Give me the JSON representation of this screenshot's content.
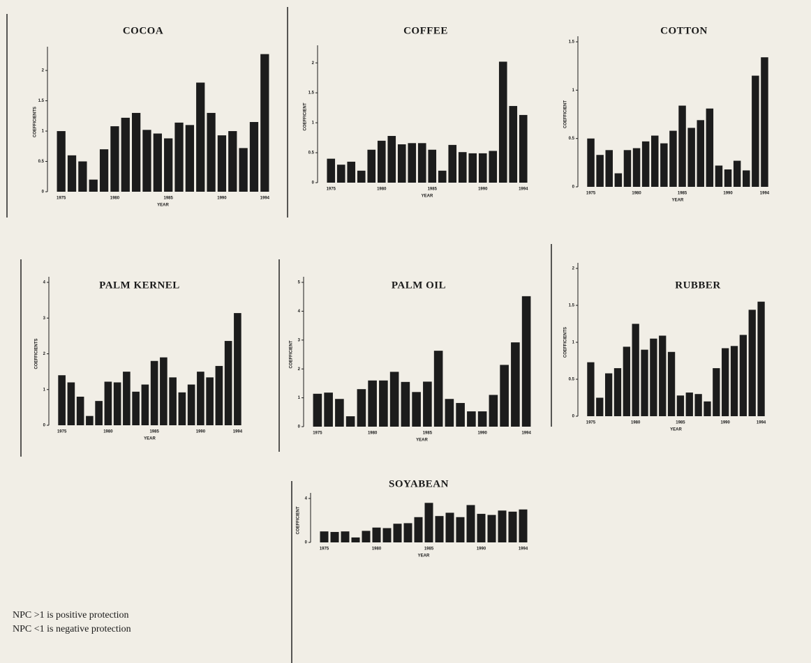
{
  "chart_data": [
    {
      "type": "bar",
      "title": "COCOA",
      "x_label": "YEAR",
      "y_label": "COEFFICIENTS",
      "categories": [
        "1975",
        null,
        null,
        null,
        null,
        "1980",
        null,
        null,
        null,
        null,
        "1985",
        null,
        null,
        null,
        null,
        "1990",
        null,
        null,
        null,
        "1994"
      ],
      "values": [
        1.0,
        0.6,
        0.5,
        0.2,
        0.7,
        1.08,
        1.22,
        1.3,
        1.02,
        0.96,
        0.88,
        1.14,
        1.1,
        1.8,
        1.3,
        0.93,
        1.0,
        0.72,
        1.15,
        2.27
      ],
      "color": "#1c1c1c",
      "ylim": [
        0,
        2.3
      ],
      "yticks": [
        0,
        0.5,
        1,
        1.5,
        2
      ]
    },
    {
      "type": "bar",
      "title": "COFFEE",
      "x_label": "YEAR",
      "y_label": "COEFFICIENT",
      "categories": [
        "1975",
        null,
        null,
        null,
        null,
        "1980",
        null,
        null,
        null,
        null,
        "1985",
        null,
        null,
        null,
        null,
        "1990",
        null,
        null,
        null,
        "1994"
      ],
      "values": [
        0.4,
        0.3,
        0.35,
        0.2,
        0.55,
        0.7,
        0.78,
        0.64,
        0.66,
        0.66,
        0.55,
        0.2,
        0.63,
        0.51,
        0.49,
        0.49,
        0.53,
        2.02,
        1.28,
        1.13
      ],
      "color": "#1c1c1c",
      "ylim": [
        0,
        2.2
      ],
      "yticks": [
        0,
        0.5,
        1,
        1.5,
        2
      ]
    },
    {
      "type": "bar",
      "title": "COTTON",
      "x_label": "YEAR",
      "y_label": "COEFFICIENT",
      "categories": [
        "1975",
        null,
        null,
        null,
        null,
        "1980",
        null,
        null,
        null,
        null,
        "1985",
        null,
        null,
        null,
        null,
        "1990",
        null,
        null,
        null,
        "1994"
      ],
      "values": [
        0.5,
        0.33,
        0.38,
        0.14,
        0.38,
        0.4,
        0.47,
        0.53,
        0.45,
        0.58,
        0.84,
        0.61,
        0.69,
        0.81,
        0.22,
        0.18,
        0.27,
        0.17,
        1.15,
        1.34
      ],
      "color": "#1c1c1c",
      "ylim": [
        0,
        1.5
      ],
      "yticks": [
        0,
        0.5,
        1,
        1.5
      ]
    },
    {
      "type": "bar",
      "title": "PALM KERNEL",
      "x_label": "YEAR",
      "y_label": "COEFFICIENTS",
      "categories": [
        "1975",
        null,
        null,
        null,
        null,
        "1980",
        null,
        null,
        null,
        null,
        "1985",
        null,
        null,
        null,
        null,
        "1990",
        null,
        null,
        null,
        "1994"
      ],
      "values": [
        1.4,
        1.2,
        0.8,
        0.26,
        0.68,
        1.22,
        1.2,
        1.5,
        0.94,
        1.14,
        1.8,
        1.9,
        1.34,
        0.92,
        1.14,
        1.5,
        1.34,
        1.66,
        2.36,
        3.14
      ],
      "color": "#1c1c1c",
      "ylim": [
        0,
        4
      ],
      "yticks": [
        0,
        1,
        2,
        3,
        4
      ]
    },
    {
      "type": "bar",
      "title": "PALM OIL",
      "x_label": "YEAR",
      "y_label": "COEFFICIENT",
      "categories": [
        "1975",
        null,
        null,
        null,
        null,
        "1980",
        null,
        null,
        null,
        null,
        "1985",
        null,
        null,
        null,
        null,
        "1990",
        null,
        null,
        null,
        "1994"
      ],
      "values": [
        1.14,
        1.18,
        0.96,
        0.36,
        1.3,
        1.6,
        1.6,
        1.9,
        1.55,
        1.2,
        1.56,
        2.63,
        0.96,
        0.82,
        0.53,
        0.53,
        1.1,
        2.14,
        2.92,
        4.52
      ],
      "color": "#1c1c1c",
      "ylim": [
        0,
        5
      ],
      "yticks": [
        0,
        1,
        2,
        3,
        4,
        5
      ]
    },
    {
      "type": "bar",
      "title": "RUBBER",
      "x_label": "YEAR",
      "y_label": "COEFFICIENTS",
      "categories": [
        "1975",
        null,
        null,
        null,
        null,
        "1980",
        null,
        null,
        null,
        null,
        "1985",
        null,
        null,
        null,
        null,
        "1990",
        null,
        null,
        null,
        "1994"
      ],
      "values": [
        0.73,
        0.25,
        0.58,
        0.65,
        0.94,
        1.25,
        0.9,
        1.05,
        1.09,
        0.87,
        0.28,
        0.32,
        0.3,
        0.2,
        0.65,
        0.92,
        0.95,
        1.1,
        1.44,
        1.55
      ],
      "color": "#1c1c1c",
      "ylim": [
        0,
        2
      ],
      "yticks": [
        0,
        0.5,
        1,
        1.5,
        2
      ]
    },
    {
      "type": "bar",
      "title": "SOYABEAN",
      "x_label": "YEAR",
      "y_label": "COEFFICIENT",
      "categories": [
        "1975",
        null,
        null,
        null,
        null,
        "1980",
        null,
        null,
        null,
        null,
        "1985",
        null,
        null,
        null,
        null,
        "1990",
        null,
        null,
        null,
        "1994"
      ],
      "values": [
        1.0,
        0.95,
        1.0,
        0.45,
        1.05,
        1.35,
        1.3,
        1.7,
        1.75,
        2.3,
        3.6,
        2.4,
        2.7,
        2.3,
        3.4,
        2.6,
        2.5,
        2.9,
        2.8,
        3.0
      ],
      "color": "#1c1c1c",
      "ylim": [
        0,
        4
      ],
      "yticks": [
        0,
        4
      ]
    }
  ],
  "notes": [
    "NPC >1 is positive protection",
    "NPC <1 is negative protection"
  ]
}
